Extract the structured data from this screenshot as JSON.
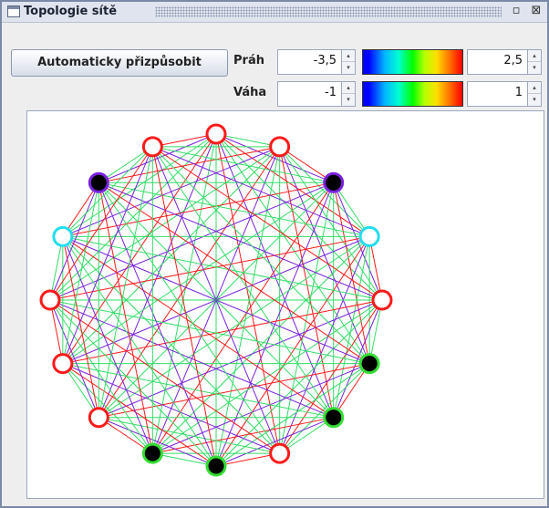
{
  "window": {
    "title": "Topologie sítě",
    "restore_icon": "restore-icon",
    "close_icon": "close-icon",
    "restore_glyph": "▫",
    "close_glyph": "⊠"
  },
  "toolbar": {
    "auto_fit_label": "Automaticky přizpůsobit"
  },
  "threshold": {
    "label": "Práh",
    "min_value": "-3,5",
    "max_value": "2,5"
  },
  "weight": {
    "label": "Váha",
    "min_value": "-1",
    "max_value": "1"
  },
  "spinner_glyphs": {
    "up": "▴",
    "down": "▾"
  },
  "colors": {
    "edge_red": "#ff1a1a",
    "edge_green": "#33dd66",
    "edge_purple": "#7a22dd",
    "node_fill_white": "#ffffff",
    "node_fill_black": "#000000"
  },
  "network": {
    "node_count": 16,
    "nodes": [
      {
        "fill": "white",
        "ring": "red"
      },
      {
        "fill": "white",
        "ring": "red"
      },
      {
        "fill": "black",
        "ring": "purple"
      },
      {
        "fill": "white",
        "ring": "cyan"
      },
      {
        "fill": "white",
        "ring": "red"
      },
      {
        "fill": "black",
        "ring": "green"
      },
      {
        "fill": "black",
        "ring": "green"
      },
      {
        "fill": "white",
        "ring": "red"
      },
      {
        "fill": "black",
        "ring": "green"
      },
      {
        "fill": "black",
        "ring": "green"
      },
      {
        "fill": "white",
        "ring": "red"
      },
      {
        "fill": "white",
        "ring": "red"
      },
      {
        "fill": "white",
        "ring": "red"
      },
      {
        "fill": "white",
        "ring": "cyan"
      },
      {
        "fill": "black",
        "ring": "purple"
      },
      {
        "fill": "white",
        "ring": "red"
      }
    ]
  }
}
